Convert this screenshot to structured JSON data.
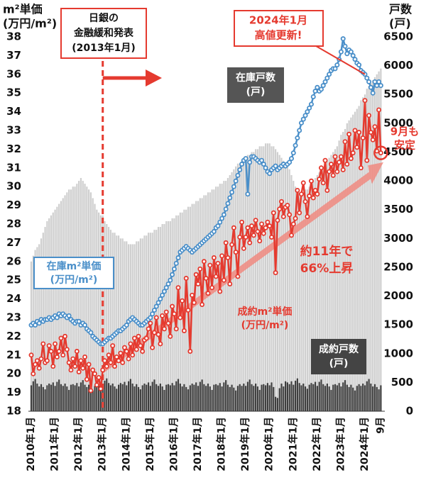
{
  "chart_data": {
    "type": "combo",
    "y_axis_title": [
      "m²単価",
      "(万円/m²)"
    ],
    "y2_axis_title": [
      "戸数",
      "(戸)"
    ],
    "categories": [
      "2010年1月",
      null,
      null,
      null,
      null,
      null,
      null,
      null,
      null,
      null,
      null,
      null,
      "2011年1月",
      null,
      null,
      null,
      null,
      null,
      null,
      null,
      null,
      null,
      null,
      null,
      "2012年1月",
      null,
      null,
      null,
      null,
      null,
      null,
      null,
      null,
      null,
      null,
      null,
      "2013年1月",
      null,
      null,
      null,
      null,
      null,
      null,
      null,
      null,
      null,
      null,
      null,
      "2014年1月",
      null,
      null,
      null,
      null,
      null,
      null,
      null,
      null,
      null,
      null,
      null,
      "2015年1月",
      null,
      null,
      null,
      null,
      null,
      null,
      null,
      null,
      null,
      null,
      null,
      "2016年1月",
      null,
      null,
      null,
      null,
      null,
      null,
      null,
      null,
      null,
      null,
      null,
      "2017年1月",
      null,
      null,
      null,
      null,
      null,
      null,
      null,
      null,
      null,
      null,
      null,
      "2018年1月",
      null,
      null,
      null,
      null,
      null,
      null,
      null,
      null,
      null,
      null,
      null,
      "2019年1月",
      null,
      null,
      null,
      null,
      null,
      null,
      null,
      null,
      null,
      null,
      null,
      "2020年1月",
      null,
      null,
      null,
      null,
      null,
      null,
      null,
      null,
      null,
      null,
      null,
      "2021年1月",
      null,
      null,
      null,
      null,
      null,
      null,
      null,
      null,
      null,
      null,
      null,
      "2022年1月",
      null,
      null,
      null,
      null,
      null,
      null,
      null,
      null,
      null,
      null,
      null,
      "2023年1月",
      null,
      null,
      null,
      null,
      null,
      null,
      null,
      null,
      null,
      null,
      null,
      "2024年1月",
      null,
      null,
      null,
      null,
      null,
      null,
      null,
      "9月"
    ],
    "ylim": [
      18,
      38
    ],
    "yticks": [
      18,
      19,
      20,
      21,
      22,
      23,
      24,
      25,
      26,
      27,
      28,
      29,
      30,
      31,
      32,
      33,
      34,
      35,
      36,
      37,
      38
    ],
    "y2lim": [
      0,
      6500
    ],
    "y2ticks": [
      0,
      500,
      1000,
      1500,
      2000,
      2500,
      3000,
      3500,
      4000,
      4500,
      5000,
      5500,
      6000,
      6500
    ],
    "series": [
      {
        "name": "在庫m²単価",
        "unit": "(万円/m²)",
        "type": "line",
        "color": "#4a8fc9",
        "values": [
          22.6,
          22.7,
          22.6,
          22.8,
          22.7,
          22.9,
          22.8,
          22.9,
          22.9,
          23.0,
          22.9,
          23.0,
          23.1,
          23.0,
          23.2,
          23.1,
          23.2,
          23.1,
          23.0,
          23.1,
          22.9,
          22.8,
          22.7,
          22.8,
          22.8,
          22.6,
          22.7,
          22.6,
          22.4,
          22.3,
          22.2,
          22.0,
          21.9,
          21.8,
          21.7,
          21.6,
          21.6,
          21.7,
          21.8,
          21.9,
          21.9,
          22.0,
          22.1,
          22.2,
          22.3,
          22.3,
          22.4,
          22.5,
          22.6,
          22.8,
          22.9,
          23.0,
          22.9,
          22.8,
          22.7,
          22.6,
          22.6,
          22.7,
          22.8,
          22.9,
          23.0,
          23.2,
          23.4,
          23.6,
          23.8,
          24.0,
          24.2,
          24.4,
          24.6,
          24.8,
          25.0,
          25.3,
          25.6,
          25.9,
          26.2,
          26.5,
          26.6,
          26.7,
          26.8,
          26.7,
          26.6,
          26.5,
          26.6,
          26.7,
          26.8,
          26.9,
          27.0,
          27.1,
          27.2,
          27.3,
          27.4,
          27.5,
          27.6,
          27.8,
          27.9,
          28.1,
          28.3,
          28.5,
          28.8,
          29.1,
          29.4,
          29.7,
          30.0,
          30.3,
          30.6,
          30.9,
          31.2,
          31.4,
          31.5,
          29.6,
          31.3,
          31.6,
          31.6,
          31.5,
          31.4,
          31.3,
          31.4,
          31.2,
          31.0,
          30.8,
          30.7,
          30.9,
          31.0,
          31.1,
          30.9,
          31.0,
          31.1,
          31.2,
          31.1,
          31.2,
          31.3,
          31.5,
          31.8,
          32.2,
          32.6,
          33.0,
          33.4,
          33.6,
          33.8,
          34.0,
          34.2,
          34.4,
          34.8,
          35.1,
          35.3,
          35.1,
          35.2,
          35.4,
          35.6,
          35.8,
          36.0,
          36.2,
          36.3,
          36.3,
          36.5,
          36.8,
          37.2,
          37.9,
          37.5,
          37.1,
          37.3,
          37.2,
          37.0,
          36.8,
          36.6,
          36.5,
          36.2,
          36.1,
          36.0,
          35.8,
          35.6,
          35.3,
          35.0,
          35.6,
          35.4,
          35.6,
          35.4
        ]
      },
      {
        "name": "成約m²単価",
        "unit": "(万円/m²)",
        "type": "line",
        "color": "#e53a2f",
        "values": [
          21.0,
          20.0,
          20.5,
          20.7,
          20.3,
          20.8,
          21.6,
          20.6,
          20.7,
          21.5,
          21.2,
          20.4,
          21.6,
          20.9,
          21.2,
          21.9,
          21.0,
          22.0,
          21.3,
          20.6,
          20.2,
          20.8,
          20.4,
          21.2,
          20.1,
          20.7,
          20.3,
          20.9,
          19.7,
          20.5,
          19.1,
          20.2,
          20.0,
          19.4,
          19.8,
          19.2,
          20.2,
          20.7,
          20.4,
          21.0,
          20.6,
          21.5,
          20.4,
          20.9,
          20.7,
          21.1,
          20.6,
          21.4,
          21.2,
          20.8,
          21.6,
          21.0,
          21.9,
          21.3,
          22.0,
          21.5,
          21.2,
          21.8,
          21.9,
          22.4,
          22.7,
          21.4,
          22.2,
          23.0,
          22.1,
          21.6,
          23.1,
          22.4,
          23.3,
          22.7,
          22.0,
          23.6,
          23.2,
          22.4,
          24.6,
          23.0,
          23.9,
          22.3,
          25.1,
          23.4,
          21.2,
          24.2,
          23.8,
          25.3,
          24.8,
          25.6,
          23.7,
          26.0,
          25.1,
          24.3,
          25.8,
          24.6,
          26.2,
          25.2,
          25.9,
          24.4,
          26.3,
          25.0,
          27.0,
          26.2,
          24.8,
          26.9,
          27.8,
          26.5,
          25.2,
          27.3,
          28.1,
          26.7,
          27.3,
          27.8,
          27.0,
          27.9,
          27.4,
          28.2,
          27.6,
          27.1,
          28.0,
          27.5,
          27.8,
          28.1,
          27.9,
          27.3,
          28.6,
          25.4,
          28.2,
          28.8,
          29.2,
          28.4,
          28.9,
          29.0,
          28.5,
          27.4,
          28.0,
          28.3,
          29.8,
          28.6,
          29.6,
          30.2,
          29.2,
          28.4,
          29.5,
          30.3,
          29.4,
          29.8,
          29.6,
          30.4,
          31.0,
          30.2,
          31.4,
          29.8,
          30.8,
          31.2,
          30.6,
          31.6,
          30.8,
          31.3,
          31.6,
          30.9,
          32.4,
          31.2,
          32.8,
          31.5,
          31.8,
          33.0,
          32.1,
          32.9,
          31.0,
          32.6,
          34.6,
          31.4,
          33.8,
          32.9,
          32.5,
          33.2,
          31.9,
          34.1,
          31.8
        ]
      },
      {
        "name": "在庫戸数",
        "unit": "(戸)",
        "type": "bar",
        "axis": "y2",
        "color": "#cfcfcf",
        "values": [
          2600,
          2700,
          2800,
          2850,
          2900,
          3000,
          3100,
          3200,
          3300,
          3350,
          3400,
          3450,
          3500,
          3550,
          3600,
          3650,
          3700,
          3750,
          3800,
          3850,
          3850,
          3900,
          3900,
          3950,
          4000,
          4050,
          4000,
          3950,
          3900,
          3850,
          3800,
          3700,
          3600,
          3500,
          3450,
          3400,
          3400,
          3300,
          3250,
          3200,
          3150,
          3100,
          3100,
          3050,
          3050,
          3000,
          3000,
          2950,
          2950,
          2900,
          2900,
          2900,
          2900,
          2950,
          2950,
          3000,
          3000,
          3050,
          3050,
          3100,
          3100,
          3100,
          3150,
          3150,
          3200,
          3200,
          3250,
          3250,
          3300,
          3300,
          3300,
          3350,
          3350,
          3400,
          3400,
          3450,
          3450,
          3500,
          3500,
          3550,
          3550,
          3600,
          3600,
          3650,
          3650,
          3700,
          3700,
          3750,
          3750,
          3800,
          3800,
          3850,
          3850,
          3900,
          3900,
          3950,
          3950,
          4000,
          4000,
          4050,
          4100,
          4150,
          4200,
          4250,
          4300,
          4300,
          4350,
          4400,
          4400,
          4450,
          4450,
          4500,
          4500,
          4550,
          4550,
          4600,
          4600,
          4600,
          4650,
          4650,
          4650,
          4600,
          4600,
          4550,
          4500,
          4450,
          4400,
          4350,
          4300,
          4250,
          4200,
          4100,
          4000,
          3900,
          3850,
          3800,
          3800,
          3800,
          3850,
          3850,
          3900,
          3950,
          4000,
          4050,
          4100,
          4150,
          4200,
          4250,
          4300,
          4350,
          4400,
          4450,
          4500,
          4550,
          4600,
          4700,
          4800,
          4850,
          4900,
          5000,
          5050,
          5100,
          5150,
          5200,
          5250,
          5300,
          5400,
          5450,
          5500,
          5600,
          5650,
          5700,
          5750,
          5800,
          5850,
          5900,
          5950
        ]
      },
      {
        "name": "成約戸数",
        "unit": "(戸)",
        "type": "bar",
        "axis": "y2",
        "color": "#3d3d3d",
        "values": [
          450,
          520,
          560,
          480,
          430,
          470,
          420,
          380,
          450,
          480,
          460,
          500,
          440,
          510,
          550,
          470,
          440,
          480,
          430,
          370,
          460,
          470,
          450,
          490,
          430,
          500,
          540,
          460,
          420,
          460,
          410,
          360,
          440,
          470,
          440,
          480,
          460,
          530,
          570,
          490,
          450,
          480,
          430,
          390,
          460,
          490,
          470,
          510,
          450,
          520,
          560,
          480,
          430,
          470,
          420,
          380,
          450,
          480,
          460,
          500,
          440,
          510,
          550,
          470,
          440,
          480,
          430,
          370,
          460,
          470,
          450,
          490,
          450,
          520,
          560,
          480,
          430,
          470,
          420,
          380,
          450,
          480,
          460,
          500,
          440,
          510,
          550,
          470,
          440,
          480,
          430,
          370,
          460,
          470,
          450,
          490,
          430,
          500,
          540,
          460,
          420,
          460,
          410,
          360,
          440,
          470,
          440,
          480,
          440,
          510,
          550,
          470,
          440,
          480,
          430,
          370,
          460,
          470,
          450,
          490,
          450,
          500,
          420,
          250,
          230,
          400,
          480,
          430,
          520,
          500,
          470,
          520,
          460,
          530,
          570,
          490,
          450,
          480,
          430,
          390,
          460,
          490,
          470,
          510,
          440,
          510,
          550,
          470,
          440,
          480,
          430,
          370,
          460,
          470,
          450,
          490,
          430,
          500,
          540,
          460,
          420,
          460,
          410,
          360,
          440,
          470,
          440,
          480,
          450,
          520,
          560,
          480,
          430,
          470,
          420,
          380,
          450
        ]
      }
    ],
    "annotations": {
      "boj": [
        "日銀の",
        "金融緩和発表",
        "(2013年1月)"
      ],
      "high": [
        "2024年1月",
        "高値更新!"
      ],
      "rise": [
        "約11年で",
        "66%上昇"
      ],
      "stable": [
        "9月も",
        "安定"
      ]
    }
  }
}
